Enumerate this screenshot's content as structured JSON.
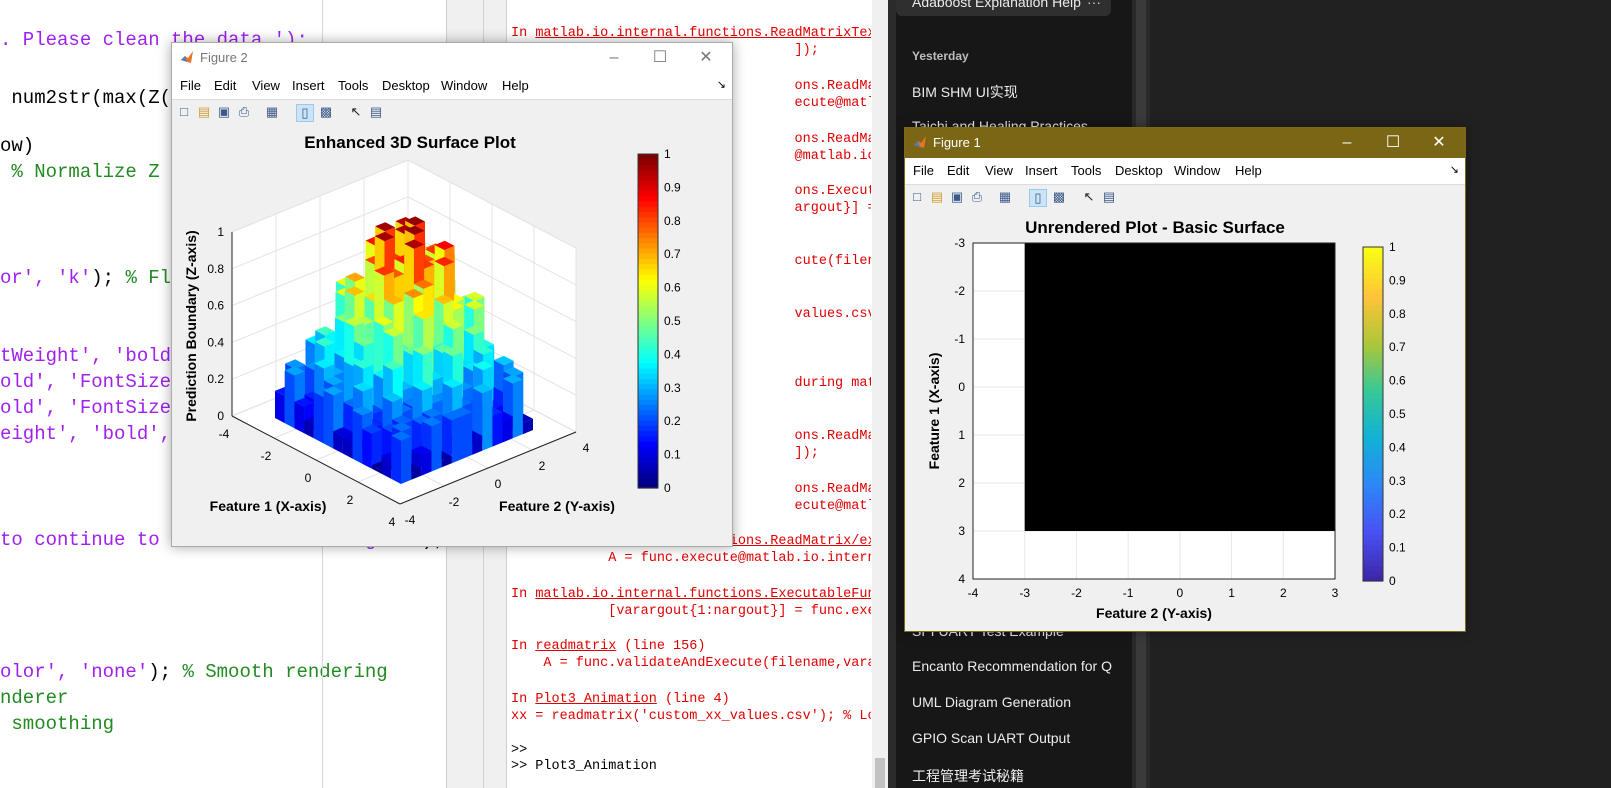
{
  "editor": {
    "lines": [
      {
        "parts": [
          {
            "t": ". Please clean the data.');",
            "c": "str"
          }
        ]
      },
      {
        "parts": [
          {
            "t": " num2str(max(Z(",
            "c": "def"
          }
        ]
      },
      {
        "parts": [
          {
            "t": "ow)",
            "c": "def"
          }
        ]
      },
      {
        "parts": [
          {
            "t": " % Normalize Z t",
            "c": "com"
          }
        ]
      },
      {
        "parts": [
          {
            "t": "or', 'k'",
            "c": "str"
          },
          {
            "t": "); ",
            "c": "def"
          },
          {
            "t": "% Flat",
            "c": "com"
          }
        ]
      },
      {
        "parts": [
          {
            "t": "tWeight', 'bold',",
            "c": "str"
          }
        ]
      },
      {
        "parts": [
          {
            "t": "old', 'FontSize',",
            "c": "str"
          }
        ]
      },
      {
        "parts": [
          {
            "t": "old', 'FontSize',",
            "c": "str"
          }
        ]
      },
      {
        "parts": [
          {
            "t": "eight', 'bold',",
            "c": "str"
          }
        ]
      },
      {
        "parts": [
          {
            "t": "to continue to enhanced rendering...'",
            "c": "str"
          },
          {
            "t": ");",
            "c": "def"
          }
        ]
      },
      {
        "parts": [
          {
            "t": "olor', 'none'",
            "c": "str"
          },
          {
            "t": "); ",
            "c": "def"
          },
          {
            "t": "% Smooth rendering",
            "c": "com"
          }
        ]
      },
      {
        "parts": [
          {
            "t": "nderer",
            "c": "com"
          }
        ]
      },
      {
        "parts": [
          {
            "t": " smoothing",
            "c": "com"
          }
        ]
      }
    ]
  },
  "command_window": {
    "lines": [
      {
        "pre": "In ",
        "link": "matlab.io.internal.functions.ReadMatrixTex",
        "post": ""
      },
      {
        "pre": "",
        "link": "",
        "post": "                                   ]);"
      },
      {
        "pre": "",
        "link": "",
        "post": "                                   ons.ReadMatrixWit"
      },
      {
        "pre": "",
        "link": "",
        "post": "                                   ecute@matlab.io.in"
      },
      {
        "pre": "",
        "link": "",
        "post": "                                   ons.ReadMatrix/exe"
      },
      {
        "pre": "",
        "link": "",
        "post": "                                   @matlab.io.intern"
      },
      {
        "pre": "",
        "link": "",
        "post": "                                   ons.ExecutableFun"
      },
      {
        "pre": "",
        "link": "",
        "post": "                                   argout}] = func.exe"
      },
      {
        "pre": "",
        "link": "",
        "post": "                                   cute(filename,vara"
      },
      {
        "pre": "",
        "link": "",
        "post": "                                   values.csv'); % Lo"
      },
      {
        "pre": "",
        "link": "",
        "post": "                                   during matlab.io"
      },
      {
        "pre": "",
        "link": "",
        "post": "                                   ons.ReadMatrixTex"
      },
      {
        "pre": "",
        "link": "",
        "post": "                                   ]);"
      },
      {
        "pre": "",
        "link": "",
        "post": "                                   ons.ReadMatrixWit"
      },
      {
        "pre": "",
        "link": "",
        "post": "                                   ecute@matlab.io.in"
      },
      {
        "pre": "In ",
        "link": "matlab.io.internal.functions.ReadMatrix/ex",
        "post": ""
      },
      {
        "pre": "",
        "link": "",
        "post": "            A = func.execute@matlab.io.intern"
      },
      {
        "pre": "In ",
        "link": "matlab.io.internal.functions.ExecutableFun",
        "post": ""
      },
      {
        "pre": "",
        "link": "",
        "post": "            [varargout{1:nargout}] = func.exe"
      },
      {
        "pre": "In ",
        "link": "readmatrix",
        "post": " (line 156)"
      },
      {
        "pre": "",
        "link": "",
        "post": "    A = func.validateAndExecute(filename,vara"
      },
      {
        "pre": "In ",
        "link": "Plot3_Animation",
        "post": " (line 4)"
      },
      {
        "pre": "",
        "link": "",
        "post": "xx = readmatrix('custom_xx_values.csv'); % Lo"
      },
      {
        "pre": "",
        "link": "",
        "post": ">>"
      },
      {
        "pre": "",
        "link": "",
        "post": ">> Plot3_Animation"
      }
    ]
  },
  "chat_sidebar": {
    "top_item": "Adaboost Explanation Help",
    "section_yesterday": "Yesterday",
    "items": [
      "BIM SHM UI实现",
      "Taichi and Healing Practices",
      "SPI UART Test Example",
      "Encanto Recommendation for Q",
      "UML Diagram Generation",
      "GPIO Scan UART Output",
      "工程管理考试秘籍"
    ]
  },
  "figure2": {
    "title": "Figure 2",
    "menu": [
      "File",
      "Edit",
      "View",
      "Insert",
      "Tools",
      "Desktop",
      "Window",
      "Help"
    ],
    "chart_data": {
      "type": "surface",
      "title": "Enhanced 3D Surface Plot",
      "xlabel": "Feature 1 (X-axis)",
      "ylabel": "Feature 2 (Y-axis)",
      "zlabel": "Prediction Boundary (Z-axis)",
      "x_ticks": [
        "-4",
        "-2",
        "0",
        "2",
        "4"
      ],
      "y_ticks": [
        "-4",
        "-2",
        "0",
        "2",
        "4"
      ],
      "z_ticks": [
        "0",
        "0.2",
        "0.4",
        "0.6",
        "0.8",
        "1"
      ],
      "colorbar_ticks": [
        "0",
        "0.1",
        "0.2",
        "0.3",
        "0.4",
        "0.5",
        "0.6",
        "0.7",
        "0.8",
        "0.9",
        "1"
      ],
      "colormap": "jet",
      "zlim": [
        0,
        1
      ],
      "grid": true
    }
  },
  "figure1": {
    "title": "Figure 1",
    "menu": [
      "File",
      "Edit",
      "View",
      "Insert",
      "Tools",
      "Desktop",
      "Window",
      "Help"
    ],
    "chart_data": {
      "type": "heatmap",
      "title": "Unrendered Plot - Basic Surface",
      "xlabel": "Feature 2 (Y-axis)",
      "ylabel": "Feature 1 (X-axis)",
      "x_ticks": [
        "-4",
        "-3",
        "-2",
        "-1",
        "0",
        "1",
        "2",
        "3"
      ],
      "y_ticks": [
        "-3",
        "-2",
        "-1",
        "0",
        "1",
        "2",
        "3",
        "4"
      ],
      "xlim": [
        -4,
        3
      ],
      "ylim": [
        -3,
        4
      ],
      "data_extent": {
        "x": [
          -3,
          3
        ],
        "y": [
          -3,
          3
        ]
      },
      "colorbar_ticks": [
        "0",
        "0.1",
        "0.2",
        "0.3",
        "0.4",
        "0.5",
        "0.6",
        "0.7",
        "0.8",
        "0.9",
        "1"
      ],
      "colormap": "parula",
      "fill_color": "#000000",
      "grid": true
    }
  }
}
